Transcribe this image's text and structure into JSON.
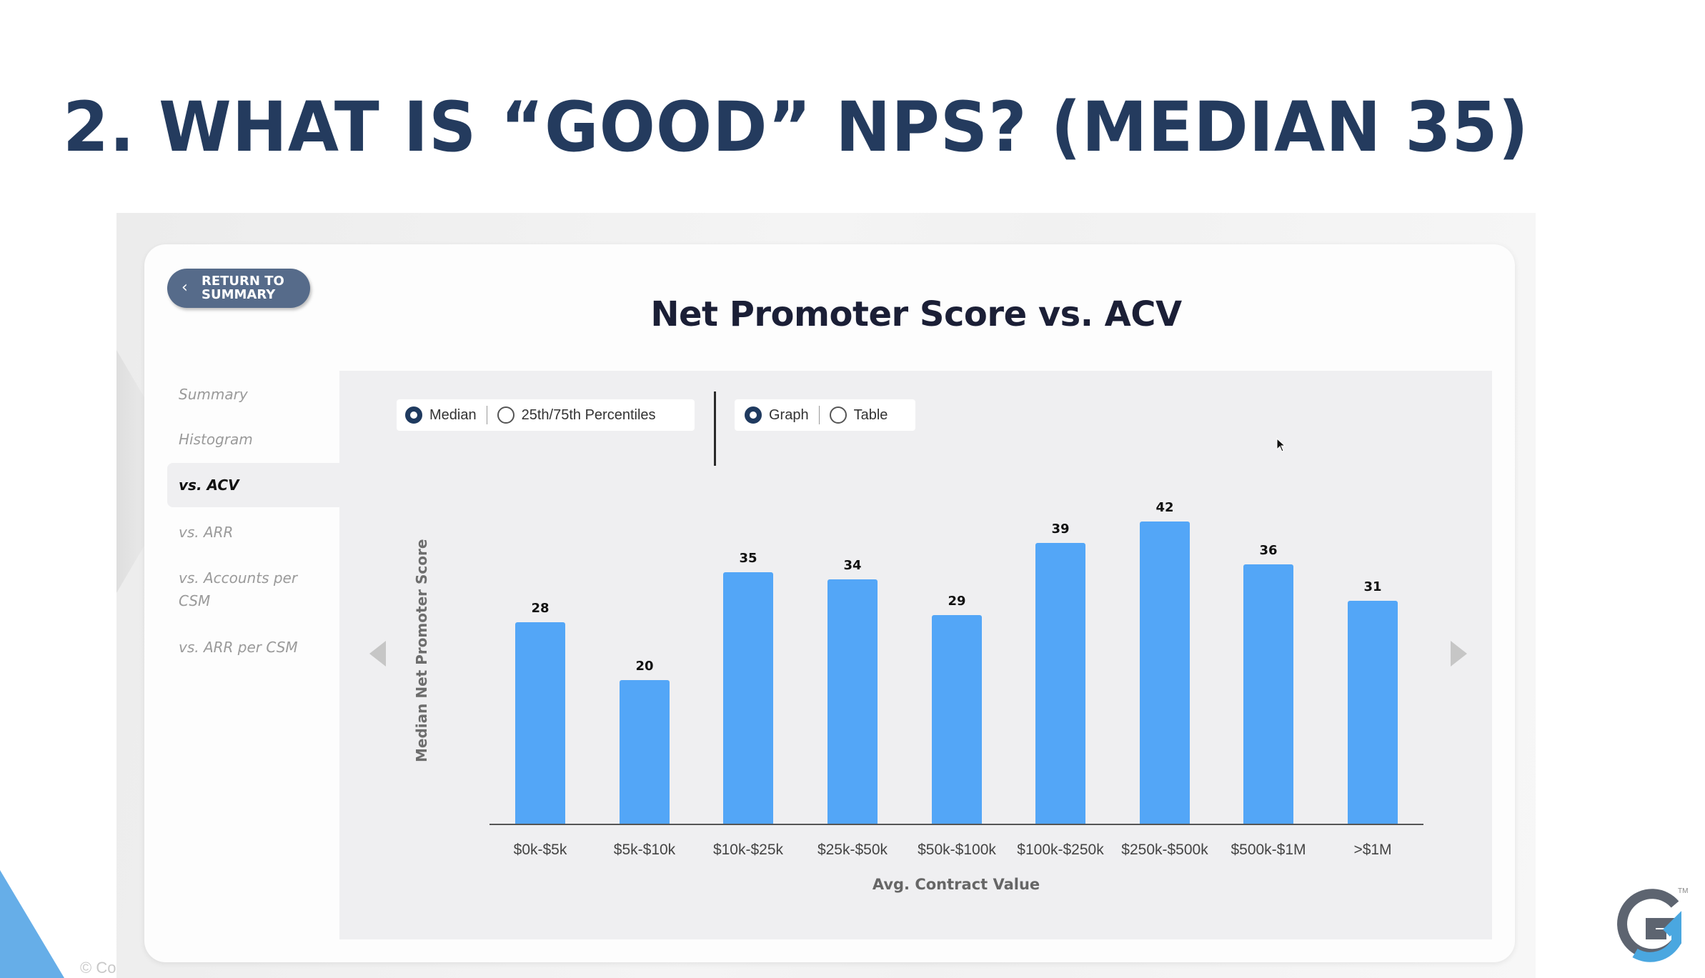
{
  "slide": {
    "title": "2. WHAT IS “GOOD” NPS? (MEDIAN 35)",
    "copyright": "© Co",
    "logo_tm": "TM"
  },
  "card": {
    "return_button": {
      "icon": "chevron-left-icon",
      "glyph": "‹",
      "line1": "RETURN TO",
      "line2": "SUMMARY"
    },
    "title": "Net Promoter Score vs. ACV"
  },
  "sidebar": {
    "items": [
      {
        "label": "Summary",
        "active": false
      },
      {
        "label": "Histogram",
        "active": false
      },
      {
        "label": "vs. ACV",
        "active": true
      },
      {
        "label": "vs. ARR",
        "active": false
      },
      {
        "label": "vs. Accounts per",
        "label2": "CSM",
        "active": false
      },
      {
        "label": "vs. ARR per CSM",
        "active": false
      }
    ]
  },
  "controls": {
    "stat_group": [
      {
        "label": "Median",
        "selected": true
      },
      {
        "label": "25th/75th Percentiles",
        "selected": false
      }
    ],
    "view_group": [
      {
        "label": "Graph",
        "selected": true
      },
      {
        "label": "Table",
        "selected": false
      }
    ]
  },
  "colors": {
    "bar": "#53a6f7",
    "title": "#243b5e",
    "radio_selected": "#1f3a5f",
    "button_bg": "#566b8a"
  },
  "chart_data": {
    "type": "bar",
    "title": "Net Promoter Score vs. ACV",
    "xlabel": "Avg. Contract Value",
    "ylabel": "Median Net Promoter Score",
    "categories": [
      "$0k-$5k",
      "$5k-$10k",
      "$10k-$25k",
      "$25k-$50k",
      "$50k-$100k",
      "$100k-$250k",
      "$250k-$500k",
      "$500k-$1M",
      ">$1M"
    ],
    "values": [
      28,
      20,
      35,
      34,
      29,
      39,
      42,
      36,
      31
    ],
    "data_labels": [
      "28",
      "20",
      "35",
      "34",
      "29",
      "39",
      "42",
      "36",
      "31"
    ],
    "ylim": [
      0,
      45
    ],
    "grid": false,
    "legend": null
  }
}
